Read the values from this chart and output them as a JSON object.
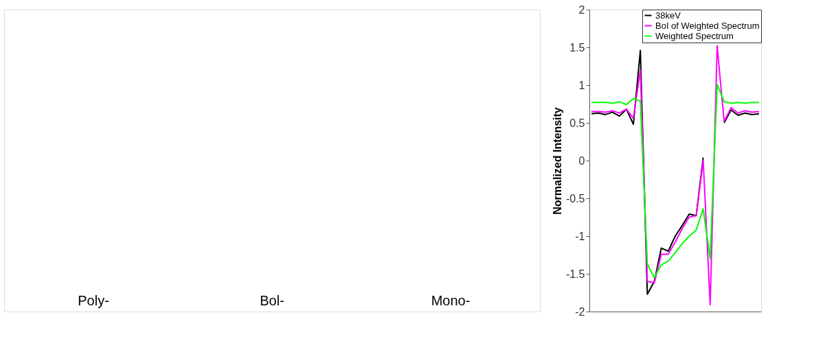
{
  "chart_data": [
    {
      "type": "other",
      "annotations": [
        "Poly-",
        "Bol-",
        "Mono-"
      ]
    },
    {
      "type": "line",
      "ylabel": "Normalized Intensity",
      "categories": [
        null,
        null,
        null,
        null,
        null,
        null,
        null,
        null,
        null,
        null,
        null,
        null,
        null,
        null,
        null,
        null,
        null,
        null,
        null,
        null,
        null,
        null,
        null,
        null,
        null
      ],
      "ylim": [
        -2,
        2
      ],
      "yticks": [
        -2,
        -1.5,
        -1,
        -0.5,
        0,
        0.5,
        1,
        1.5,
        2
      ],
      "tick_labels": "y",
      "grid": false,
      "legend": "top right",
      "marker": "none",
      "line_style": "solid",
      "series": [
        {
          "name": "38keV",
          "color": "#000000",
          "values": [
            0.62,
            0.63,
            0.61,
            0.64,
            0.59,
            0.68,
            0.48,
            1.46,
            -1.77,
            -1.6,
            -1.16,
            -1.2,
            -1.0,
            -0.86,
            -0.71,
            -0.73,
            0.04,
            null,
            null,
            0.5,
            0.67,
            0.6,
            0.63,
            0.61,
            0.62
          ]
        },
        {
          "name": "BoI of Weighted Spectrum",
          "color": "#ff00ff",
          "values": [
            0.65,
            0.65,
            0.64,
            0.66,
            0.63,
            0.68,
            0.56,
            1.2,
            -1.6,
            -1.62,
            -1.24,
            -1.24,
            -1.08,
            -0.9,
            -0.75,
            -0.73,
            0.0,
            -1.91,
            1.52,
            0.52,
            0.7,
            0.63,
            0.66,
            0.64,
            0.65
          ]
        },
        {
          "name": "Weighted Spectrum",
          "color": "#00ff00",
          "values": [
            0.77,
            0.77,
            0.77,
            0.76,
            0.78,
            0.74,
            0.82,
            0.79,
            -1.37,
            -1.55,
            -1.38,
            -1.33,
            -1.22,
            -1.1,
            -1.0,
            -0.92,
            -0.64,
            -1.3,
            1.01,
            0.78,
            0.76,
            0.77,
            0.76,
            0.77,
            0.77
          ]
        }
      ]
    }
  ]
}
